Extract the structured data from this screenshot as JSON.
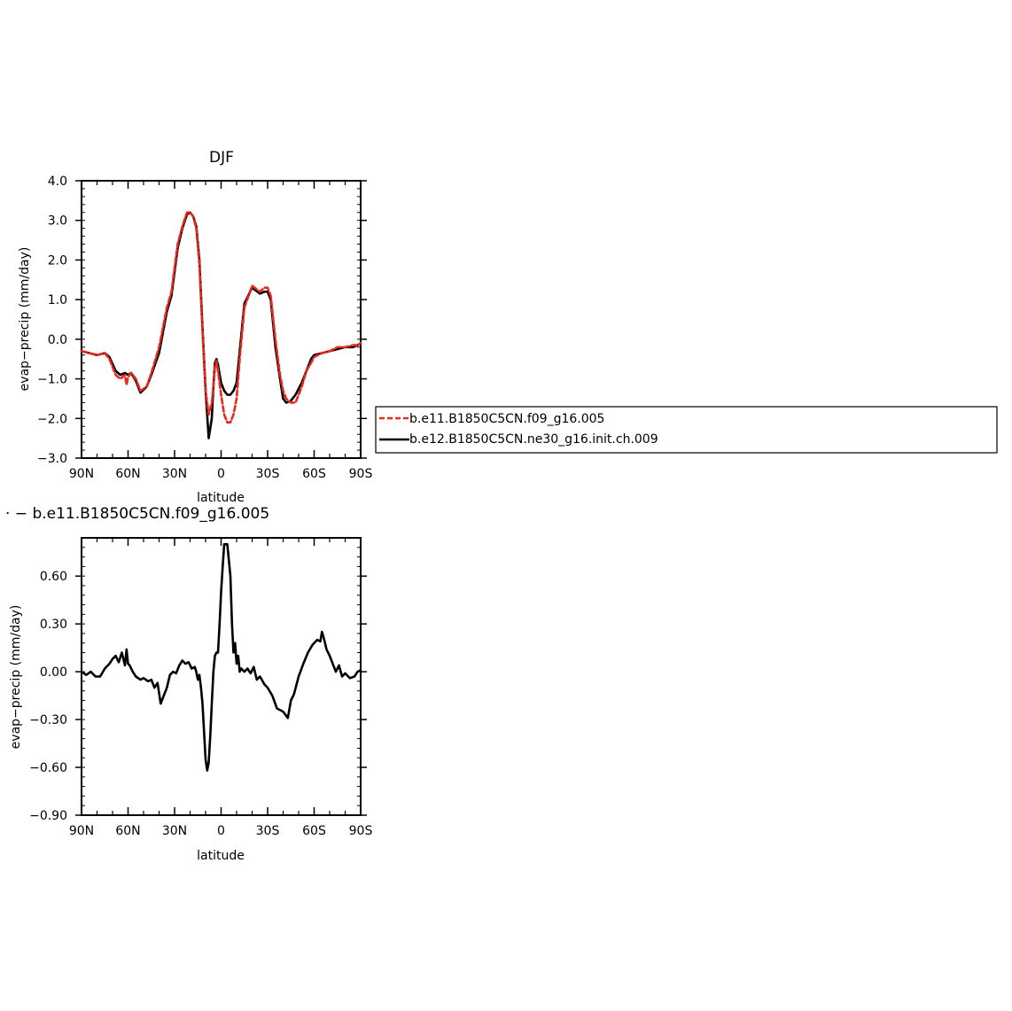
{
  "chart_data": [
    {
      "type": "line",
      "title": "DJF",
      "xlabel": "latitude",
      "ylabel": "evap−precip (mm/day)",
      "xlim": [
        90,
        -90
      ],
      "ylim": [
        -3.0,
        4.0
      ],
      "xticks": [
        90,
        60,
        30,
        0,
        -30,
        -60,
        -90
      ],
      "xtick_labels": [
        "90N",
        "60N",
        "30N",
        "0",
        "30S",
        "60S",
        "90S"
      ],
      "yticks": [
        -3.0,
        -2.0,
        -1.0,
        0.0,
        1.0,
        2.0,
        3.0,
        4.0
      ],
      "ytick_labels": [
        "−3.0",
        "−2.0",
        "−1.0",
        "0.0",
        "1.0",
        "2.0",
        "3.0",
        "4.0"
      ],
      "legend_position": "right",
      "series": [
        {
          "name": "b.e11.B1850C5CN.f09_g16.005",
          "color": "#e8281e",
          "dash": "dashed",
          "x": [
            90,
            85,
            80,
            75,
            72,
            68,
            65,
            62,
            61,
            60,
            58,
            55,
            52,
            48,
            45,
            40,
            35,
            32,
            28,
            25,
            22,
            20,
            18,
            16,
            14,
            12,
            10,
            8,
            6,
            5,
            4,
            3,
            2,
            0,
            -2,
            -4,
            -6,
            -8,
            -10,
            -12,
            -15,
            -20,
            -25,
            -28,
            -30,
            -32,
            -35,
            -38,
            -40,
            -42,
            -45,
            -48,
            -52,
            -55,
            -58,
            -60,
            -65,
            -70,
            -75,
            -80,
            -85,
            -88,
            -90
          ],
          "y": [
            -0.3,
            -0.35,
            -0.4,
            -0.35,
            -0.5,
            -0.9,
            -1.0,
            -0.9,
            -1.15,
            -0.95,
            -0.85,
            -1.0,
            -1.3,
            -1.2,
            -0.85,
            -0.2,
            0.8,
            1.2,
            2.4,
            2.85,
            3.2,
            3.2,
            3.1,
            2.8,
            1.9,
            0.2,
            -1.3,
            -1.9,
            -1.6,
            -1.2,
            -0.7,
            -0.55,
            -0.8,
            -1.4,
            -1.9,
            -2.1,
            -2.1,
            -1.9,
            -1.5,
            -0.5,
            0.8,
            1.35,
            1.2,
            1.3,
            1.3,
            1.1,
            0.0,
            -0.9,
            -1.3,
            -1.5,
            -1.6,
            -1.6,
            -1.2,
            -0.8,
            -0.6,
            -0.45,
            -0.35,
            -0.3,
            -0.2,
            -0.2,
            -0.15,
            -0.15,
            -0.1
          ]
        },
        {
          "name": "b.e12.B1850C5CN.ne30_g16.init.ch.009",
          "color": "#000000",
          "dash": "solid",
          "x": [
            90,
            85,
            80,
            75,
            72,
            68,
            65,
            62,
            60,
            58,
            55,
            52,
            48,
            45,
            40,
            35,
            32,
            28,
            25,
            22,
            20,
            18,
            16,
            14,
            12,
            10,
            8,
            6,
            5,
            4,
            3,
            2,
            0,
            -2,
            -4,
            -6,
            -8,
            -10,
            -12,
            -15,
            -20,
            -25,
            -28,
            -30,
            -32,
            -35,
            -38,
            -40,
            -42,
            -45,
            -48,
            -52,
            -55,
            -58,
            -60,
            -65,
            -70,
            -75,
            -80,
            -85,
            -88,
            -90
          ],
          "y": [
            -0.3,
            -0.35,
            -0.4,
            -0.35,
            -0.45,
            -0.8,
            -0.9,
            -0.85,
            -0.9,
            -0.85,
            -1.05,
            -1.35,
            -1.2,
            -0.9,
            -0.35,
            0.7,
            1.1,
            2.3,
            2.8,
            3.15,
            3.2,
            3.1,
            2.85,
            2.0,
            0.3,
            -1.3,
            -2.5,
            -2.0,
            -1.2,
            -0.6,
            -0.5,
            -0.65,
            -1.1,
            -1.3,
            -1.4,
            -1.4,
            -1.3,
            -1.1,
            -0.3,
            0.9,
            1.3,
            1.15,
            1.2,
            1.2,
            1.0,
            -0.2,
            -1.0,
            -1.5,
            -1.6,
            -1.55,
            -1.4,
            -1.1,
            -0.8,
            -0.5,
            -0.4,
            -0.35,
            -0.3,
            -0.25,
            -0.2,
            -0.2,
            -0.15,
            -0.1
          ]
        }
      ]
    },
    {
      "type": "line",
      "title": "· − b.e11.B1850C5CN.f09_g16.005",
      "xlabel": "latitude",
      "ylabel": "evap−precip (mm/day)",
      "xlim": [
        90,
        -90
      ],
      "ylim": [
        -0.9,
        0.84
      ],
      "xticks": [
        90,
        60,
        30,
        0,
        -30,
        -60,
        -90
      ],
      "xtick_labels": [
        "90N",
        "60N",
        "30N",
        "0",
        "30S",
        "60S",
        "90S"
      ],
      "yticks": [
        -0.9,
        -0.6,
        -0.3,
        0.0,
        0.3,
        0.6
      ],
      "ytick_labels": [
        "−0.90",
        "−0.60",
        "−0.30",
        "0.00",
        "0.30",
        "0.60"
      ],
      "series": [
        {
          "color": "#000000",
          "dash": "solid",
          "x": [
            90,
            87,
            84,
            81,
            78,
            75,
            72,
            70,
            68,
            66,
            64,
            62,
            61,
            60,
            59,
            57,
            55,
            52,
            50,
            47,
            45,
            43,
            41,
            39,
            37,
            35,
            33,
            31,
            29,
            27,
            25,
            23,
            21,
            19,
            17,
            16,
            15,
            14,
            13,
            12,
            11,
            10,
            9,
            8,
            7,
            6,
            5,
            4,
            3,
            2,
            1,
            0,
            -1,
            -2,
            -4,
            -6,
            -7,
            -8,
            -9,
            -10,
            -11,
            -12,
            -13,
            -15,
            -17,
            -19,
            -21,
            -23,
            -25,
            -28,
            -30,
            -33,
            -36,
            -40,
            -43,
            -45,
            -47,
            -50,
            -53,
            -56,
            -59,
            -62,
            -64,
            -65,
            -66,
            -68,
            -70,
            -72,
            -74,
            -76,
            -78,
            -80,
            -83,
            -86,
            -88,
            -90
          ],
          "y": [
            0.0,
            -0.02,
            0.0,
            -0.03,
            -0.03,
            0.02,
            0.05,
            0.08,
            0.1,
            0.06,
            0.12,
            0.04,
            0.14,
            0.05,
            0.04,
            0.0,
            -0.03,
            -0.05,
            -0.04,
            -0.06,
            -0.05,
            -0.1,
            -0.07,
            -0.2,
            -0.15,
            -0.1,
            -0.02,
            0.0,
            -0.01,
            0.04,
            0.07,
            0.05,
            0.06,
            0.02,
            0.03,
            0.0,
            -0.05,
            -0.02,
            -0.1,
            -0.2,
            -0.38,
            -0.55,
            -0.62,
            -0.57,
            -0.4,
            -0.2,
            0.0,
            0.1,
            0.12,
            0.12,
            0.3,
            0.5,
            0.66,
            0.8,
            0.8,
            0.6,
            0.3,
            0.12,
            0.18,
            0.05,
            0.1,
            0.0,
            0.02,
            0.0,
            0.02,
            -0.01,
            0.03,
            -0.05,
            -0.03,
            -0.08,
            -0.1,
            -0.15,
            -0.23,
            -0.25,
            -0.29,
            -0.18,
            -0.14,
            -0.03,
            0.05,
            0.12,
            0.17,
            0.2,
            0.19,
            0.25,
            0.22,
            0.14,
            0.1,
            0.05,
            0.0,
            0.04,
            -0.03,
            -0.01,
            -0.04,
            -0.03,
            0.0,
            0.01
          ]
        }
      ]
    }
  ]
}
